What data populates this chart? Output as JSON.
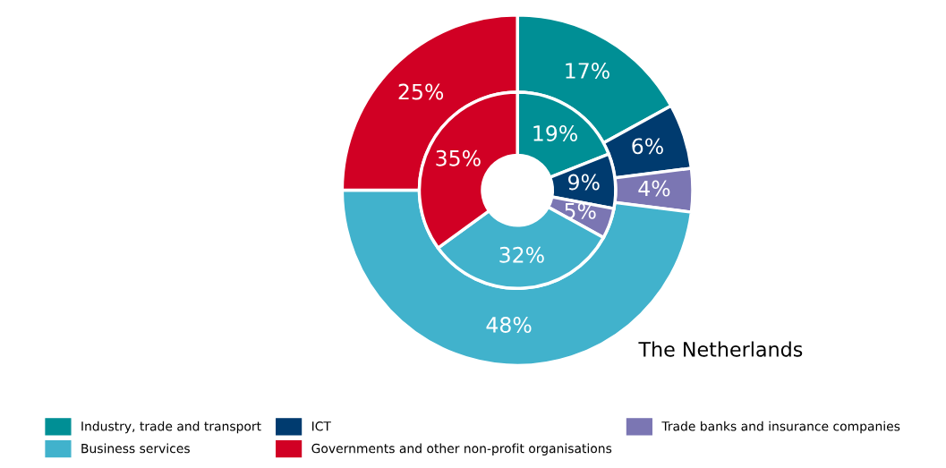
{
  "chart_data": {
    "type": "donut",
    "title": "The Netherlands",
    "categories": [
      "Industry, trade and transport",
      "ICT",
      "Trade banks and insurance companies",
      "Business services",
      "Governments and other non-profit organisations"
    ],
    "colors": [
      "#008f95",
      "#003b6f",
      "#7b76b3",
      "#41b2cc",
      "#d10024"
    ],
    "series": [
      {
        "values": [
          17,
          6,
          4,
          48,
          25
        ],
        "value_labels": [
          "17%",
          "6%",
          "4%",
          "48%",
          "25%"
        ]
      },
      {
        "values": [
          19,
          9,
          5,
          32,
          35
        ],
        "value_labels": [
          "19%",
          "9%",
          "5%",
          "32%",
          "35%"
        ]
      }
    ],
    "legend": "bottom"
  }
}
